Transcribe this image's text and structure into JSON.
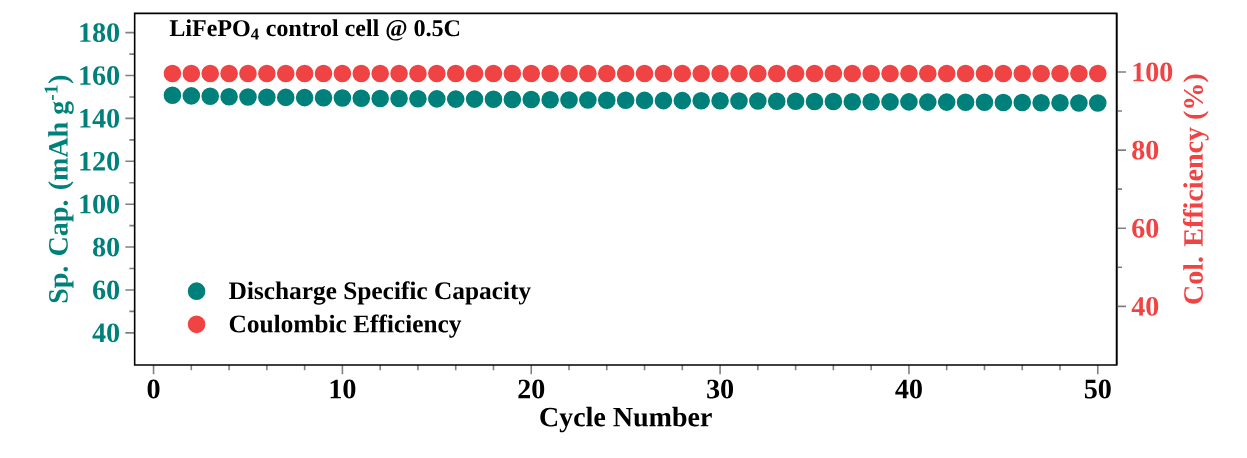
{
  "chart_data": {
    "type": "scatter",
    "title": "LiFePO$_{4}$ control cell @ 0.5C",
    "xlabel": "Cycle Number",
    "ylabel": "Sp. Cap. (mAh g$^{-1}$)",
    "y2label": "Col. Efficiency (%)",
    "x": [
      1,
      2,
      3,
      4,
      5,
      6,
      7,
      8,
      9,
      10,
      11,
      12,
      13,
      14,
      15,
      16,
      17,
      18,
      19,
      20,
      21,
      22,
      23,
      24,
      25,
      26,
      27,
      28,
      29,
      30,
      31,
      32,
      33,
      34,
      35,
      36,
      37,
      38,
      39,
      40,
      41,
      42,
      43,
      44,
      45,
      46,
      47,
      48,
      49,
      50
    ],
    "series": [
      {
        "name": "Discharge Specific Capacity",
        "color": "#00807a",
        "values": [
          150.8,
          150.5,
          150.3,
          150.1,
          150.0,
          149.9,
          149.8,
          149.7,
          149.6,
          149.5,
          149.4,
          149.3,
          149.3,
          149.2,
          149.1,
          149.0,
          149.0,
          148.9,
          148.8,
          148.8,
          148.7,
          148.6,
          148.6,
          148.5,
          148.5,
          148.4,
          148.3,
          148.3,
          148.2,
          148.2,
          148.1,
          148.1,
          148.0,
          148.0,
          147.9,
          147.9,
          147.8,
          147.8,
          147.7,
          147.7,
          147.6,
          147.6,
          147.5,
          147.5,
          147.4,
          147.4,
          147.3,
          147.3,
          147.2,
          147.2
        ]
      },
      {
        "name": "Coulombic Efficiency",
        "color": "#f04343",
        "axis": "y2",
        "values": [
          99.6,
          99.6,
          99.6,
          99.6,
          99.6,
          99.6,
          99.6,
          99.6,
          99.6,
          99.6,
          99.6,
          99.6,
          99.6,
          99.6,
          99.6,
          99.6,
          99.6,
          99.6,
          99.6,
          99.6,
          99.6,
          99.6,
          99.6,
          99.6,
          99.6,
          99.6,
          99.6,
          99.6,
          99.6,
          99.6,
          99.6,
          99.6,
          99.6,
          99.6,
          99.6,
          99.6,
          99.6,
          99.6,
          99.6,
          99.6,
          99.6,
          99.6,
          99.6,
          99.6,
          99.6,
          99.6,
          99.6,
          99.6,
          99.6,
          99.6
        ]
      }
    ],
    "xlim": [
      -1,
      51
    ],
    "xticks": [
      0,
      10,
      20,
      30,
      40,
      50
    ],
    "ylim": [
      25,
      189
    ],
    "yticks": [
      40,
      60,
      80,
      100,
      120,
      140,
      160,
      180
    ],
    "y2lim": [
      25,
      115
    ],
    "y2ticks": [
      40,
      60,
      80,
      100
    ],
    "marker": "circle",
    "legend": "bottom left"
  }
}
